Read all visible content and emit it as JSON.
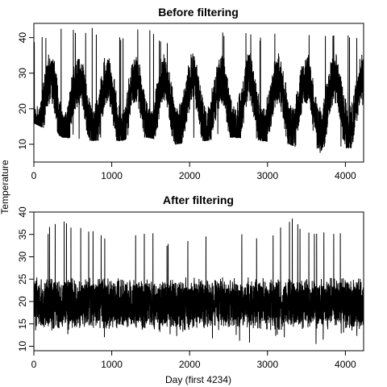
{
  "shared": {
    "xlabel": "Day (first 4234)",
    "ylabel": "Temperature"
  },
  "chart_data": [
    {
      "type": "line",
      "title": "Before filtering",
      "xlim": [
        0,
        4234
      ],
      "ylim": [
        5,
        44
      ],
      "x_ticks": [
        0,
        1000,
        2000,
        3000,
        4000
      ],
      "y_ticks": [
        10,
        20,
        30,
        40
      ],
      "signal": {
        "n_days": 4234,
        "period_days": 365,
        "mean": 21,
        "seasonal_amplitude": 7.5,
        "noise_spread": 8,
        "series_name": "Temperature"
      },
      "series": [
        {
          "values": [
            {
              "x": 0,
              "low": 16,
              "high": 40
            },
            {
              "x": 365,
              "low": 12,
              "high": 43.5
            },
            {
              "x": 730,
              "low": 11,
              "high": 43
            },
            {
              "x": 1095,
              "low": 11,
              "high": 41
            },
            {
              "x": 1460,
              "low": 12,
              "high": 43
            },
            {
              "x": 1825,
              "low": 10,
              "high": 38
            },
            {
              "x": 2190,
              "low": 11,
              "high": 40
            },
            {
              "x": 2555,
              "low": 12,
              "high": 43.5
            },
            {
              "x": 2920,
              "low": 11,
              "high": 40
            },
            {
              "x": 3285,
              "low": 10,
              "high": 43
            },
            {
              "x": 3650,
              "low": 6,
              "high": 41
            },
            {
              "x": 4015,
              "low": 9,
              "high": 41
            }
          ]
        }
      ]
    },
    {
      "type": "line",
      "title": "After filtering",
      "xlim": [
        0,
        4234
      ],
      "ylim": [
        9,
        40
      ],
      "x_ticks": [
        0,
        1000,
        2000,
        3000,
        4000
      ],
      "y_ticks": [
        10,
        15,
        20,
        25,
        30,
        35,
        40
      ],
      "signal": {
        "n_days": 4234,
        "period_days": 365,
        "mean": 19.5,
        "seasonal_amplitude": 0,
        "noise_spread": 6,
        "series_name": "Temperature"
      },
      "series": [
        {
          "values": [
            {
              "x": 0,
              "low": 11,
              "high": 35
            },
            {
              "x": 365,
              "low": 12,
              "high": 38.5
            },
            {
              "x": 730,
              "low": 11,
              "high": 37
            },
            {
              "x": 1095,
              "low": 12,
              "high": 35
            },
            {
              "x": 1460,
              "low": 11,
              "high": 36
            },
            {
              "x": 1825,
              "low": 12,
              "high": 33
            },
            {
              "x": 2190,
              "low": 12,
              "high": 35
            },
            {
              "x": 2555,
              "low": 11,
              "high": 37
            },
            {
              "x": 2920,
              "low": 10,
              "high": 34
            },
            {
              "x": 3285,
              "low": 12,
              "high": 39.5
            },
            {
              "x": 3650,
              "low": 9.5,
              "high": 36
            },
            {
              "x": 4015,
              "low": 12,
              "high": 36
            }
          ]
        }
      ]
    }
  ]
}
